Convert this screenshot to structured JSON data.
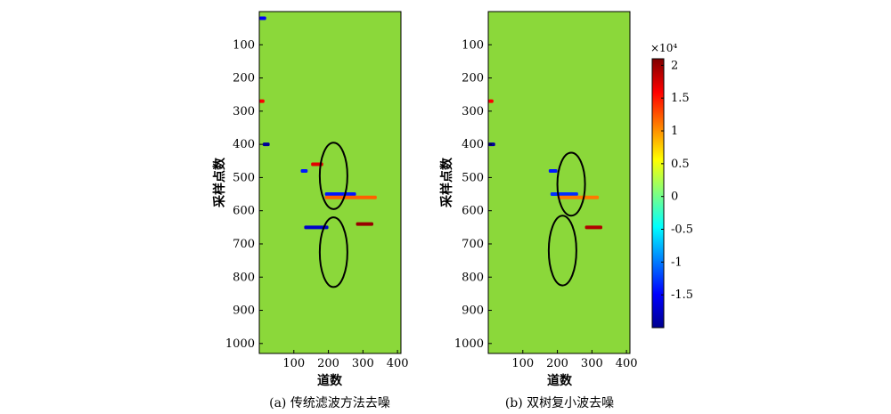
{
  "panels": [
    {
      "caption": "(a)  传统滤波方法去噪",
      "ylabel": "采样点数",
      "xlabel": "道数",
      "x_ticks": [
        "100",
        "200",
        "300",
        "400"
      ],
      "y_ticks": [
        "100",
        "200",
        "300",
        "400",
        "500",
        "600",
        "700",
        "800",
        "900",
        "1000"
      ]
    },
    {
      "caption": "(b)  双树复小波去噪",
      "ylabel": "采样点数",
      "xlabel": "道数",
      "x_ticks": [
        "100",
        "200",
        "300",
        "400"
      ],
      "y_ticks": [
        "100",
        "200",
        "300",
        "400",
        "500",
        "600",
        "700",
        "800",
        "900",
        "1000"
      ]
    }
  ],
  "colorbar": {
    "multiplier": "×10⁴",
    "ticks": [
      "2",
      "1.5",
      "1",
      "0.5",
      "0",
      "-0.5",
      "-1",
      "-1.5"
    ],
    "range": [
      -2,
      2.1
    ],
    "colormap": "jet"
  },
  "chart_data": [
    {
      "type": "heatmap",
      "title": "",
      "caption": "(a)  传统滤波方法去噪",
      "xlabel": "道数",
      "ylabel": "采样点数",
      "xlim": [
        0,
        410
      ],
      "ylim": [
        1030,
        0
      ],
      "colorbar_range": [
        -20000,
        21000
      ],
      "background_value": 0,
      "features": [
        {
          "trace": [
            0,
            20
          ],
          "sample": 20,
          "value": -15000
        },
        {
          "trace": [
            10,
            30
          ],
          "sample": 400,
          "value": -19000
        },
        {
          "trace": [
            0,
            15
          ],
          "sample": 270,
          "value": 16000
        },
        {
          "trace": [
            120,
            140
          ],
          "sample": 480,
          "value": -14000
        },
        {
          "trace": [
            150,
            185
          ],
          "sample": 460,
          "value": 17000
        },
        {
          "trace": [
            190,
            280
          ],
          "sample": 550,
          "value": -14000
        },
        {
          "trace": [
            190,
            340
          ],
          "sample": 560,
          "value": 12000
        },
        {
          "trace": [
            130,
            200
          ],
          "sample": 650,
          "value": -17000
        },
        {
          "trace": [
            280,
            330
          ],
          "sample": 640,
          "value": 20000
        }
      ],
      "circles": [
        {
          "center": [
            215,
            495
          ],
          "radius": [
            40,
            100
          ],
          "outline": "#000000"
        },
        {
          "center": [
            215,
            725
          ],
          "radius": [
            40,
            105
          ],
          "outline": "#000000"
        }
      ]
    },
    {
      "type": "heatmap",
      "title": "",
      "caption": "(b)  双树复小波去噪",
      "xlabel": "道数",
      "ylabel": "采样点数",
      "xlim": [
        0,
        410
      ],
      "ylim": [
        1030,
        0
      ],
      "colorbar_range": [
        -20000,
        21000
      ],
      "background_value": 0,
      "features": [
        {
          "trace": [
            0,
            20
          ],
          "sample": 400,
          "value": -19000
        },
        {
          "trace": [
            0,
            15
          ],
          "sample": 270,
          "value": 16000
        },
        {
          "trace": [
            175,
            200
          ],
          "sample": 480,
          "value": -14000
        },
        {
          "trace": [
            180,
            260
          ],
          "sample": 550,
          "value": -13000
        },
        {
          "trace": [
            200,
            320
          ],
          "sample": 560,
          "value": 11000
        },
        {
          "trace": [
            280,
            330
          ],
          "sample": 650,
          "value": 19000
        }
      ],
      "circles": [
        {
          "center": [
            240,
            520
          ],
          "radius": [
            40,
            95
          ],
          "outline": "#000000"
        },
        {
          "center": [
            215,
            720
          ],
          "radius": [
            40,
            105
          ],
          "outline": "#000000"
        }
      ]
    }
  ]
}
